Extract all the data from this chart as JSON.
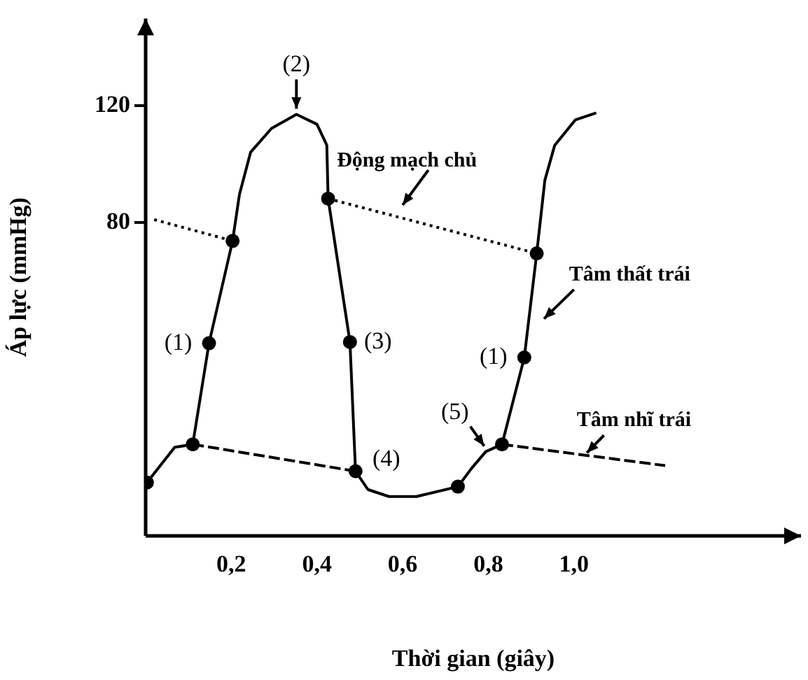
{
  "chart_data": {
    "type": "line",
    "xlabel": "Thời gian (giây)",
    "ylabel": "Áp lực (mmHg)",
    "xlim": [
      0,
      1.53
    ],
    "ylim": [
      -27.5,
      150
    ],
    "xticks": [
      {
        "value": 0.2,
        "label": "0,2"
      },
      {
        "value": 0.4,
        "label": "0,4"
      },
      {
        "value": 0.6,
        "label": "0,6"
      },
      {
        "value": 0.8,
        "label": "0,8"
      },
      {
        "value": 1.0,
        "label": "1,0"
      }
    ],
    "yticks": [
      80,
      120
    ],
    "grid": false,
    "legend": false,
    "marker": "none",
    "series": [
      {
        "name": "Động mạch chủ",
        "color": "#000000",
        "line_style": "dotted",
        "x": [
          0.02,
          0.203,
          0.3,
          0.426,
          0.913
        ],
        "values": [
          81,
          73.7,
          null,
          88.2,
          69.4
        ]
      },
      {
        "name": "Tâm thất trái",
        "color": "#000000",
        "line_style": "solid",
        "x": [
          0.003,
          0.068,
          0.11,
          0.148,
          0.203,
          0.219,
          0.245,
          0.294,
          0.352,
          0.4,
          0.423,
          0.426,
          0.477,
          0.49,
          0.519,
          0.568,
          0.632,
          0.729,
          0.761,
          0.794,
          0.832,
          0.884,
          0.913,
          0.932,
          0.955,
          1.003,
          1.052
        ],
        "values": [
          -9.2,
          2.9,
          3.9,
          38.6,
          73.7,
          89.6,
          104.1,
          112.3,
          117.1,
          113.7,
          106.5,
          88.2,
          39,
          -5.3,
          -11.6,
          -14,
          -14,
          -10.6,
          -4.3,
          1.4,
          3.9,
          33.7,
          69.4,
          94.5,
          106.5,
          115.2,
          117.6
        ]
      },
      {
        "name": "Tâm nhĩ trái",
        "color": "#000000",
        "line_style": "dashed",
        "x": [
          0.11,
          0.49,
          0.6,
          0.832,
          1.213
        ],
        "values": [
          3.9,
          -5.3,
          null,
          3.9,
          -3.4
        ]
      },
      {
        "type": "scatter",
        "color": "#000000",
        "marker": "circle",
        "x": [
          0.003,
          0.11,
          0.148,
          0.203,
          0.426,
          0.477,
          0.49,
          0.729,
          0.832,
          0.884,
          0.913
        ],
        "values": [
          -9.2,
          3.9,
          38.6,
          73.7,
          88.2,
          39,
          -5.3,
          -10.6,
          3.9,
          33.7,
          69.4
        ]
      }
    ],
    "annotations": [
      {
        "text": "(1)",
        "x": 0.148,
        "y": 38.6
      },
      {
        "text": "(2)",
        "x": 0.352,
        "y": 117.1
      },
      {
        "text": "(3)",
        "x": 0.477,
        "y": 39
      },
      {
        "text": "(4)",
        "x": 0.49,
        "y": -5.3
      },
      {
        "text": "(5)",
        "x": 0.794,
        "y": 1.4
      },
      {
        "text": "(1)",
        "x": 0.884,
        "y": 33.7
      }
    ]
  }
}
